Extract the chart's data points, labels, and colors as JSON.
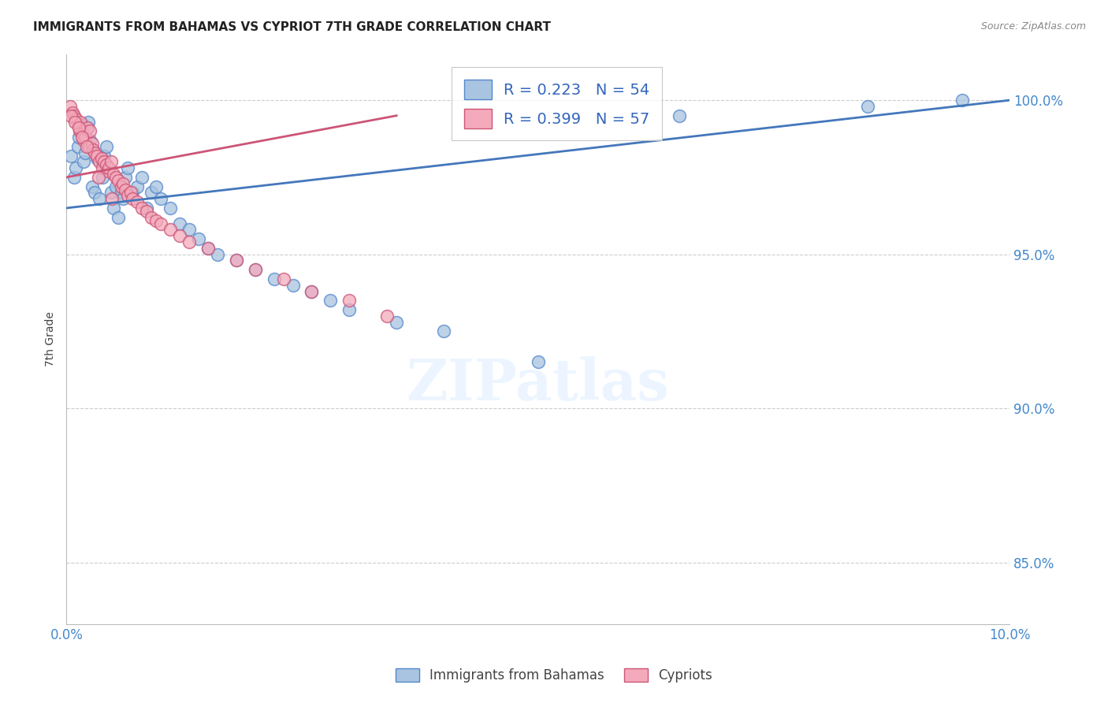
{
  "title": "IMMIGRANTS FROM BAHAMAS VS CYPRIOT 7TH GRADE CORRELATION CHART",
  "source": "Source: ZipAtlas.com",
  "ylabel": "7th Grade",
  "y_ticks": [
    85.0,
    90.0,
    95.0,
    100.0
  ],
  "y_tick_labels": [
    "85.0%",
    "90.0%",
    "95.0%",
    "100.0%"
  ],
  "x_range": [
    0.0,
    10.0
  ],
  "y_range": [
    83.0,
    101.5
  ],
  "legend_line1": "R = 0.223   N = 54",
  "legend_line2": "R = 0.399   N = 57",
  "legend_label_blue": "Immigrants from Bahamas",
  "legend_label_pink": "Cypriots",
  "blue_color": "#A8C4E0",
  "pink_color": "#F4AABB",
  "blue_edge": "#5588CC",
  "pink_edge": "#CC5577",
  "trendline_blue": "#4477BB",
  "trendline_pink": "#CC5577",
  "blue_scatter_x": [
    0.05,
    0.08,
    0.1,
    0.12,
    0.13,
    0.15,
    0.17,
    0.18,
    0.2,
    0.22,
    0.23,
    0.25,
    0.27,
    0.3,
    0.32,
    0.35,
    0.38,
    0.4,
    0.42,
    0.45,
    0.47,
    0.5,
    0.52,
    0.55,
    0.58,
    0.6,
    0.62,
    0.65,
    0.7,
    0.75,
    0.8,
    0.85,
    0.9,
    0.95,
    1.0,
    1.1,
    1.2,
    1.3,
    1.4,
    1.5,
    1.6,
    1.8,
    2.0,
    2.2,
    2.4,
    2.6,
    2.8,
    3.0,
    3.5,
    4.0,
    5.0,
    6.5,
    8.5,
    9.5
  ],
  "blue_scatter_y": [
    98.2,
    97.5,
    97.8,
    98.5,
    98.8,
    99.0,
    99.2,
    98.0,
    98.3,
    99.1,
    99.3,
    98.7,
    97.2,
    97.0,
    98.1,
    96.8,
    97.5,
    98.2,
    98.5,
    97.8,
    97.0,
    96.5,
    97.2,
    96.2,
    97.0,
    96.8,
    97.5,
    97.8,
    97.0,
    97.2,
    97.5,
    96.5,
    97.0,
    97.2,
    96.8,
    96.5,
    96.0,
    95.8,
    95.5,
    95.2,
    95.0,
    94.8,
    94.5,
    94.2,
    94.0,
    93.8,
    93.5,
    93.2,
    92.8,
    92.5,
    91.5,
    99.5,
    99.8,
    100.0
  ],
  "pink_scatter_x": [
    0.04,
    0.06,
    0.08,
    0.1,
    0.12,
    0.14,
    0.15,
    0.17,
    0.18,
    0.2,
    0.22,
    0.24,
    0.25,
    0.27,
    0.28,
    0.3,
    0.32,
    0.35,
    0.37,
    0.38,
    0.4,
    0.42,
    0.44,
    0.45,
    0.47,
    0.5,
    0.52,
    0.55,
    0.58,
    0.6,
    0.62,
    0.65,
    0.68,
    0.7,
    0.75,
    0.8,
    0.85,
    0.9,
    0.95,
    1.0,
    1.1,
    1.2,
    1.3,
    1.5,
    1.8,
    2.0,
    2.3,
    2.6,
    3.0,
    3.4,
    0.05,
    0.09,
    0.13,
    0.16,
    0.21,
    0.34,
    0.48
  ],
  "pink_scatter_y": [
    99.8,
    99.6,
    99.5,
    99.4,
    99.2,
    99.0,
    99.3,
    98.9,
    98.7,
    98.8,
    99.1,
    98.5,
    99.0,
    98.6,
    98.4,
    98.3,
    98.2,
    98.0,
    98.1,
    97.8,
    98.0,
    97.9,
    97.7,
    97.8,
    98.0,
    97.6,
    97.5,
    97.4,
    97.2,
    97.3,
    97.1,
    96.9,
    97.0,
    96.8,
    96.7,
    96.5,
    96.4,
    96.2,
    96.1,
    96.0,
    95.8,
    95.6,
    95.4,
    95.2,
    94.8,
    94.5,
    94.2,
    93.8,
    93.5,
    93.0,
    99.5,
    99.3,
    99.1,
    98.8,
    98.5,
    97.5,
    96.8
  ],
  "blue_trendline_x": [
    0.0,
    10.0
  ],
  "blue_trendline_y": [
    96.5,
    100.0
  ],
  "pink_trendline_x": [
    0.0,
    3.5
  ],
  "pink_trendline_y": [
    97.5,
    99.5
  ],
  "watermark_text": "ZIPatlas",
  "background_color": "#ffffff",
  "marker_size": 130,
  "bottom_legend_items": [
    "Immigrants from Bahamas",
    "Cypriots"
  ]
}
